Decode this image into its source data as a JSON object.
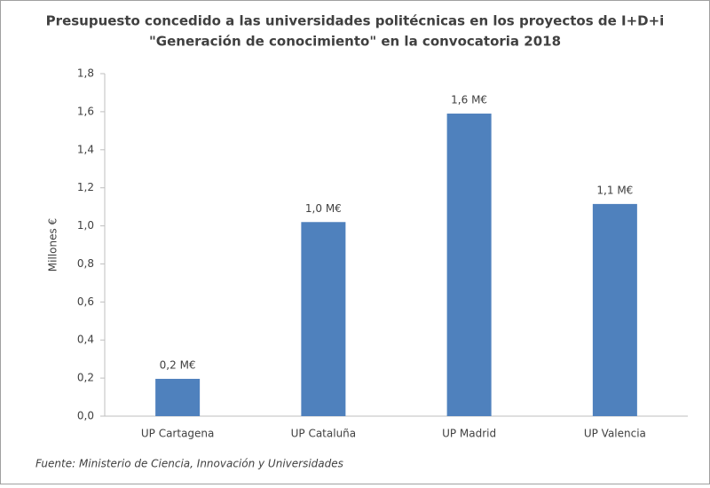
{
  "chart_data": {
    "type": "bar",
    "title": [
      "Presupuesto concedido a las universidades politécnicas en los proyectos de I+D+i",
      "\"Generación de conocimiento\" en la convocatoria 2018"
    ],
    "y_label": "Millones €",
    "source": "Fuente: Ministerio de Ciencia, Innovación y Universidades",
    "categories": [
      "UP Cartagena",
      "UP Cataluña",
      "UP Madrid",
      "UP Valencia"
    ],
    "values": [
      0.196,
      1.02,
      1.59,
      1.115
    ],
    "value_labels": [
      "0,2 M€",
      "1,0 M€",
      "1,6 M€",
      "1,1 M€"
    ],
    "color": "#4f81bd",
    "ylim": [
      0,
      1.8
    ],
    "yticks": [
      {
        "value": 0,
        "label": "0,0"
      },
      {
        "value": 0.2,
        "label": "0,2"
      },
      {
        "value": 0.4,
        "label": "0,4"
      },
      {
        "value": 0.6,
        "label": "0,6"
      },
      {
        "value": 0.8,
        "label": "0,8"
      },
      {
        "value": 1.0,
        "label": "1,0"
      },
      {
        "value": 1.2,
        "label": "1,2"
      },
      {
        "value": 1.4,
        "label": "1,4"
      },
      {
        "value": 1.6,
        "label": "1,6"
      },
      {
        "value": 1.8,
        "label": "1,8"
      }
    ],
    "grid": false
  }
}
